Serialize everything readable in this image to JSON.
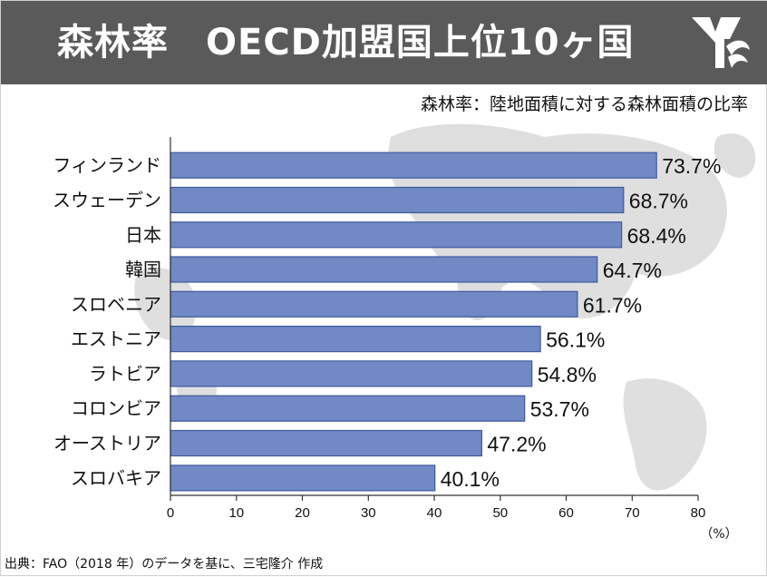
{
  "header": {
    "title": "森林率　OECD加盟国上位10ヶ国",
    "accent_color": "#5a5a5a",
    "logo_icon": "brand-logo-icon"
  },
  "subtitle": "森林率：陸地面積に対する森林面積の比率",
  "source": "出典：FAO（2018 年）のデータを基に、三宅隆介 作成",
  "chart_data": {
    "type": "bar",
    "orientation": "horizontal",
    "categories": [
      "フィンランド",
      "スウェーデン",
      "日本",
      "韓国",
      "スロベニア",
      "エストニア",
      "ラトビア",
      "コロンビア",
      "オーストリア",
      "スロバキア"
    ],
    "values": [
      73.7,
      68.7,
      68.4,
      64.7,
      61.7,
      56.1,
      54.8,
      53.7,
      47.2,
      40.1
    ],
    "value_labels": [
      "73.7%",
      "68.7%",
      "68.4%",
      "64.7%",
      "61.7%",
      "56.1%",
      "54.8%",
      "53.7%",
      "47.2%",
      "40.1%"
    ],
    "xlim": [
      0,
      80
    ],
    "xticks": [
      0,
      10,
      20,
      30,
      40,
      50,
      60,
      70,
      80
    ],
    "xunit": "（%）",
    "bar_color": "#7189c4",
    "bar_edge_color": "#3e5a9e",
    "grid": false,
    "background": "world map silhouette"
  }
}
